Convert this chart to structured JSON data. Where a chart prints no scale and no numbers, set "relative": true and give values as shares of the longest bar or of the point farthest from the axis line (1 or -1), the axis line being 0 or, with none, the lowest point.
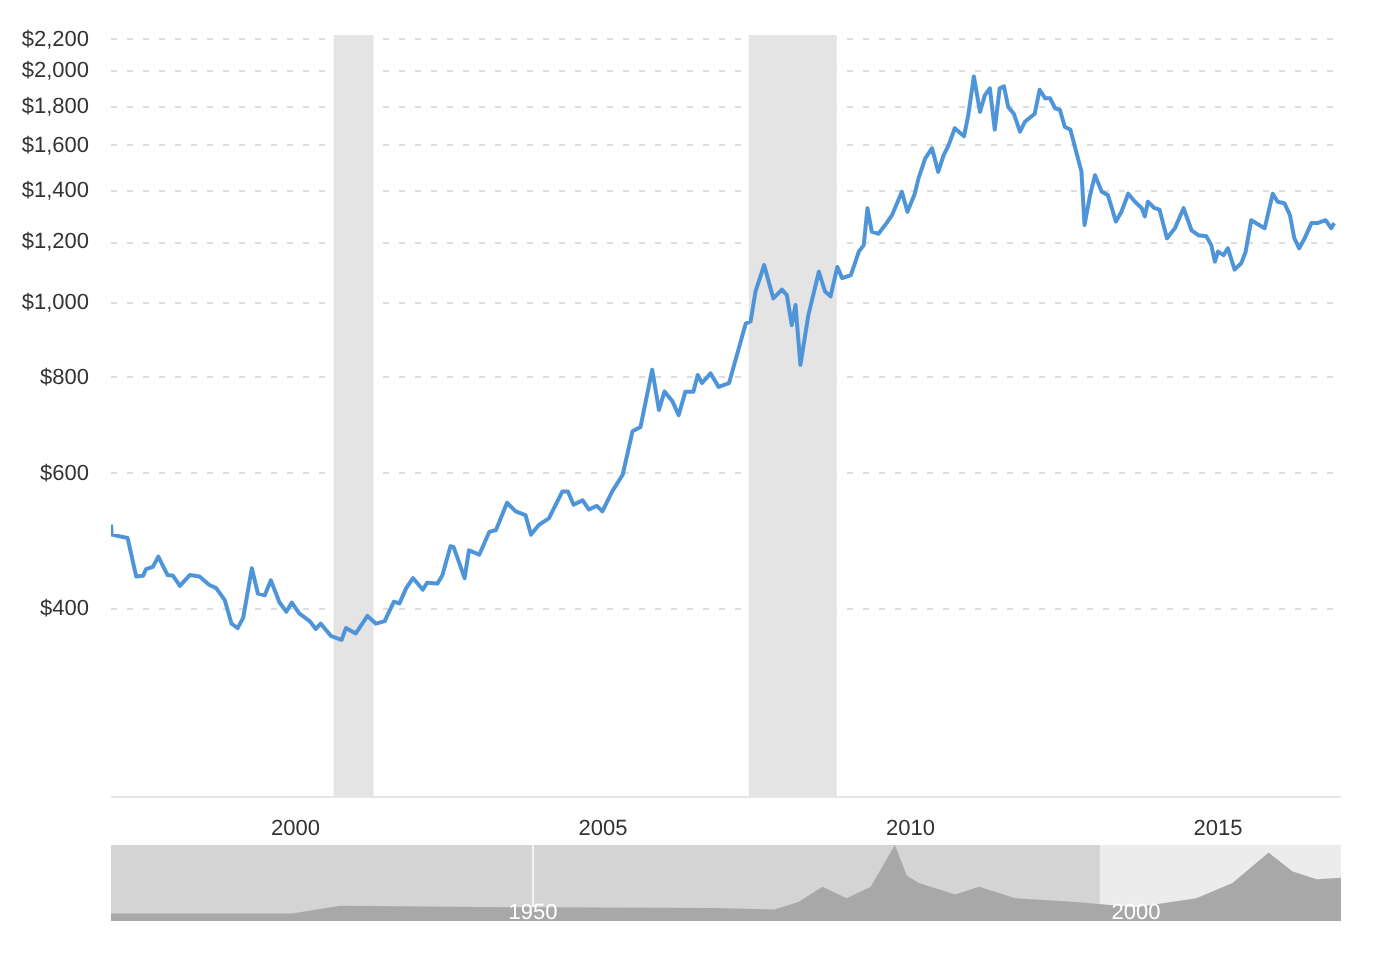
{
  "chart_data": [
    {
      "type": "line",
      "log": "y",
      "grid": "y",
      "line_style": "solid",
      "marker": "none",
      "xlim": [
        1997,
        2017
      ],
      "xticks": [
        2000,
        2005,
        2010,
        2015
      ],
      "ylim": [
        228,
        2230
      ],
      "yticks": [
        {
          "value": 400,
          "label": "$400"
        },
        {
          "value": 600,
          "label": "$600"
        },
        {
          "value": 800,
          "label": "$800"
        },
        {
          "value": 1000,
          "label": "$1,000"
        },
        {
          "value": 1200,
          "label": "$1,200"
        },
        {
          "value": 1400,
          "label": "$1,400"
        },
        {
          "value": 1600,
          "label": "$1,600"
        },
        {
          "value": 1800,
          "label": "$1,800"
        },
        {
          "value": 2000,
          "label": "$2,000"
        },
        {
          "value": 2200,
          "label": "$2,200"
        }
      ],
      "bands": [
        {
          "axis": "x",
          "from": 2000.62,
          "to": 2001.27,
          "color": "#e4e4e4"
        },
        {
          "axis": "x",
          "from": 2007.37,
          "to": 2008.8,
          "color": "#e4e4e4"
        }
      ],
      "series": [
        {
          "color": "#4d94d9",
          "x": [
            1997.0,
            1997.01,
            1997.27,
            1997.41,
            1997.52,
            1997.57,
            1997.68,
            1997.77,
            1997.92,
            1998.01,
            1998.12,
            1998.28,
            1998.44,
            1998.6,
            1998.71,
            1998.85,
            1998.96,
            1999.06,
            1999.15,
            1999.29,
            1999.39,
            1999.5,
            1999.6,
            1999.74,
            1999.85,
            1999.94,
            2000.06,
            2000.23,
            2000.33,
            2000.41,
            2000.58,
            2000.75,
            2000.82,
            2000.98,
            2001.17,
            2001.31,
            2001.45,
            2001.6,
            2001.69,
            2001.8,
            2001.91,
            2002.07,
            2002.14,
            2002.31,
            2002.39,
            2002.52,
            2002.57,
            2002.75,
            2002.82,
            2002.99,
            2003.15,
            2003.26,
            2003.44,
            2003.58,
            2003.74,
            2003.83,
            2003.96,
            2004.12,
            2004.34,
            2004.43,
            2004.52,
            2004.67,
            2004.77,
            2004.9,
            2004.99,
            2005.15,
            2005.32,
            2005.48,
            2005.61,
            2005.8,
            2005.91,
            2006.0,
            2006.13,
            2006.23,
            2006.34,
            2006.47,
            2006.54,
            2006.61,
            2006.75,
            2006.88,
            2007.05,
            2007.32,
            2007.4,
            2007.48,
            2007.62,
            2007.77,
            2007.91,
            2007.99,
            2008.07,
            2008.13,
            2008.21,
            2008.34,
            2008.51,
            2008.61,
            2008.7,
            2008.81,
            2008.89,
            2009.03,
            2009.16,
            2009.24,
            2009.3,
            2009.37,
            2009.48,
            2009.61,
            2009.7,
            2009.86,
            2009.95,
            2010.07,
            2010.13,
            2010.24,
            2010.35,
            2010.45,
            2010.54,
            2010.62,
            2010.72,
            2010.87,
            2010.94,
            2011.03,
            2011.13,
            2011.21,
            2011.29,
            2011.37,
            2011.45,
            2011.52,
            2011.59,
            2011.68,
            2011.78,
            2011.86,
            2012.02,
            2012.1,
            2012.19,
            2012.27,
            2012.35,
            2012.43,
            2012.51,
            2012.6,
            2012.78,
            2012.83,
            2012.92,
            2013.0,
            2013.11,
            2013.21,
            2013.34,
            2013.43,
            2013.54,
            2013.65,
            2013.76,
            2013.81,
            2013.86,
            2013.97,
            2014.05,
            2014.17,
            2014.3,
            2014.44,
            2014.57,
            2014.68,
            2014.81,
            2014.89,
            2014.95,
            2015.0,
            2015.09,
            2015.16,
            2015.27,
            2015.38,
            2015.45,
            2015.54,
            2015.67,
            2015.76,
            2015.89,
            2015.97,
            2016.08,
            2016.17,
            2016.24,
            2016.32,
            2016.41,
            2016.52,
            2016.62,
            2016.75,
            2016.84,
            2016.89
          ],
          "values": [
            515,
            500,
            495,
            441,
            442,
            451,
            454,
            468,
            443,
            442,
            429,
            443,
            441,
            430,
            426,
            411,
            383,
            378,
            390,
            452,
            419,
            417,
            436,
            408,
            397,
            408,
            395,
            386,
            377,
            383,
            369,
            365,
            378,
            372,
            392,
            383,
            386,
            409,
            407,
            426,
            439,
            424,
            433,
            432,
            443,
            483,
            482,
            439,
            477,
            471,
            504,
            507,
            550,
            536,
            530,
            500,
            515,
            525,
            569,
            569,
            547,
            554,
            539,
            545,
            536,
            569,
            598,
            681,
            690,
            819,
            726,
            767,
            745,
            715,
            767,
            767,
            806,
            787,
            810,
            778,
            787,
            940,
            946,
            1035,
            1120,
            1014,
            1041,
            1024,
            936,
            994,
            831,
            965,
            1098,
            1035,
            1020,
            1114,
            1077,
            1087,
            1166,
            1189,
            1328,
            1238,
            1230,
            1270,
            1301,
            1395,
            1314,
            1387,
            1452,
            1542,
            1589,
            1481,
            1557,
            1604,
            1687,
            1647,
            1755,
            1970,
            1772,
            1863,
            1901,
            1680,
            1901,
            1912,
            1797,
            1762,
            1670,
            1720,
            1762,
            1893,
            1845,
            1845,
            1791,
            1782,
            1693,
            1680,
            1481,
            1263,
            1381,
            1466,
            1395,
            1381,
            1276,
            1314,
            1387,
            1354,
            1328,
            1296,
            1354,
            1328,
            1322,
            1214,
            1251,
            1328,
            1243,
            1225,
            1221,
            1189,
            1132,
            1166,
            1154,
            1178,
            1105,
            1127,
            1166,
            1281,
            1263,
            1251,
            1387,
            1354,
            1348,
            1301,
            1214,
            1178,
            1214,
            1270,
            1270,
            1281,
            1251,
            1270
          ]
        }
      ]
    },
    {
      "type": "area",
      "relative": true,
      "grid": "x",
      "tick_labels": "x",
      "xlim": [
        1915,
        2017
      ],
      "xticks": [
        1950,
        2000
      ],
      "bands": [
        {
          "axis": "x",
          "from": 1997,
          "to": 2017,
          "color": "#ececec"
        }
      ],
      "series": [
        {
          "color": "#a8a8a8",
          "x": [
            1915,
            1930,
            1934,
            1950,
            1965,
            1970,
            1972,
            1974,
            1976,
            1978,
            1980,
            1981,
            1982,
            1985,
            1987,
            1990,
            1995,
            2000,
            2005,
            2008,
            2011,
            2013,
            2015,
            2017
          ],
          "values": [
            0.1,
            0.1,
            0.2,
            0.18,
            0.17,
            0.15,
            0.25,
            0.45,
            0.3,
            0.45,
            1.0,
            0.6,
            0.5,
            0.35,
            0.45,
            0.3,
            0.25,
            0.18,
            0.3,
            0.5,
            0.9,
            0.65,
            0.55,
            0.57
          ]
        }
      ]
    }
  ]
}
